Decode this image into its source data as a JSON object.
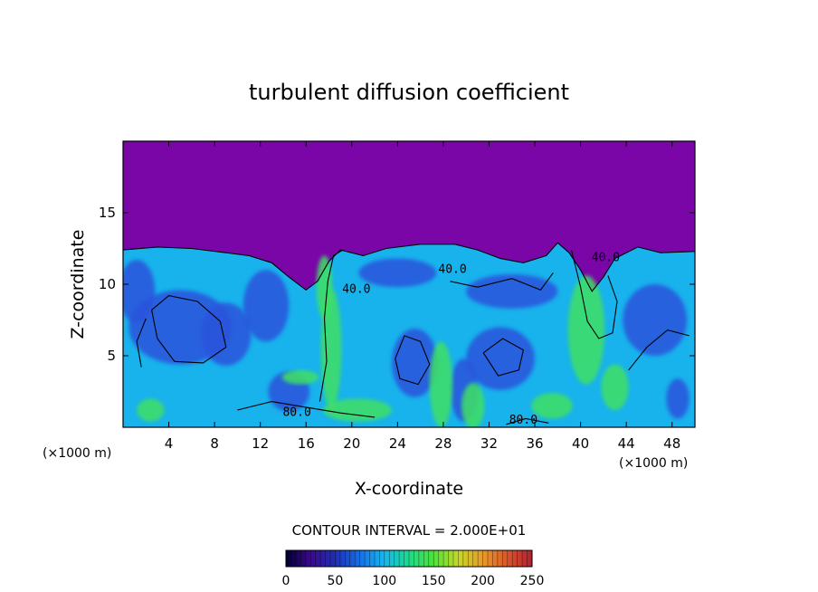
{
  "chart_data": {
    "type": "heatmap",
    "title": "turbulent diffusion coefficient",
    "xlabel": "X-coordinate",
    "ylabel": "Z-coordinate",
    "x_unit": "(×1000 m)",
    "z_unit": "(×1000 m)",
    "xlim": [
      0,
      50
    ],
    "ylim": [
      0,
      20
    ],
    "x_ticks": [
      4,
      8,
      12,
      16,
      20,
      24,
      28,
      32,
      36,
      40,
      44,
      48
    ],
    "y_ticks": [
      5,
      10,
      15
    ],
    "contour_interval_text": "CONTOUR INTERVAL = 2.000E+01",
    "contour_labels": [
      {
        "text": "40.0",
        "x": 28.8,
        "z": 10.8
      },
      {
        "text": "40.0",
        "x": 20.4,
        "z": 9.4
      },
      {
        "text": "40.0",
        "x": 42.2,
        "z": 11.6
      },
      {
        "text": "80.0",
        "x": 15.2,
        "z": 0.8
      },
      {
        "text": "80.0",
        "x": 35.0,
        "z": 0.25
      }
    ],
    "colorbar": {
      "min": 0,
      "max": 250,
      "ticks": [
        "0",
        "50",
        "100",
        "150",
        "200",
        "250"
      ],
      "colors": [
        "#000033",
        "#3a0a8a",
        "#1f2fb3",
        "#1570e8",
        "#17b8ee",
        "#1ed98a",
        "#4fe23a",
        "#c5d82a",
        "#e89a2a",
        "#d9562a",
        "#b02030"
      ]
    },
    "colors": {
      "background_field": "#7a06a8",
      "low_values": "#2b53dc",
      "mid_values": "#18b2ec",
      "high_values": "#3fe064",
      "contour_line": "#000000"
    }
  }
}
